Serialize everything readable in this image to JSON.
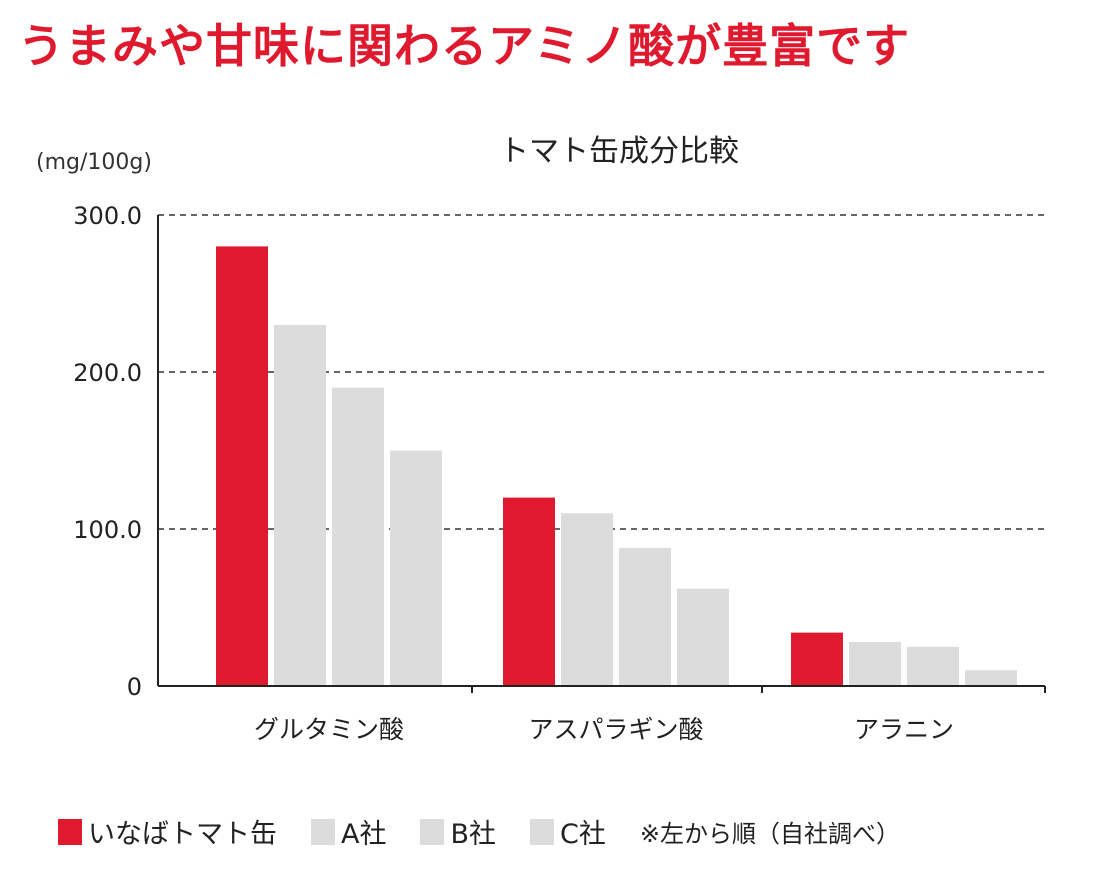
{
  "headline": "うまみや甘味に関わるアミノ酸が豊富です",
  "chart_data": {
    "type": "bar",
    "title": "トマト缶成分比較",
    "ylabel": "(mg/100g)",
    "xlabel": "",
    "ylim": [
      0,
      300
    ],
    "yticks": [
      0,
      100,
      200,
      300
    ],
    "ytick_labels": [
      "0",
      "100.0",
      "200.0",
      "300.0"
    ],
    "grid": true,
    "categories": [
      "グルタミン酸",
      "アスパラギン酸",
      "アラニン"
    ],
    "series": [
      {
        "name": "いなばトマト缶",
        "color": "#e01a2e",
        "values": [
          280,
          120,
          34
        ]
      },
      {
        "name": "A社",
        "color": "#dcdcdc",
        "values": [
          230,
          110,
          28
        ]
      },
      {
        "name": "B社",
        "color": "#dcdcdc",
        "values": [
          190,
          88,
          25
        ]
      },
      {
        "name": "C社",
        "color": "#dcdcdc",
        "values": [
          150,
          62,
          10
        ]
      }
    ],
    "legend_position": "bottom",
    "note": "※左から順（自社調べ）"
  }
}
